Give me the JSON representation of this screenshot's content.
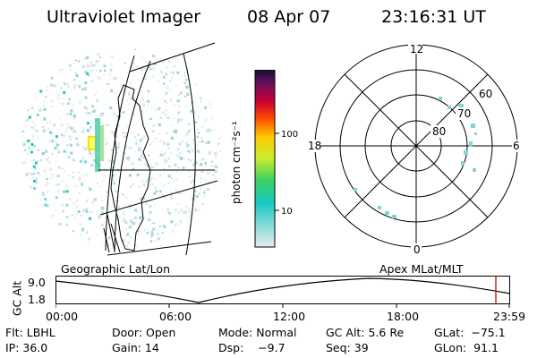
{
  "header": {
    "title": "Ultraviolet Imager",
    "date": "08 Apr 07",
    "time": "23:16:31 UT"
  },
  "colorbar": {
    "label_html": "photon cm⁻²s⁻¹",
    "tick_100": "100",
    "tick_10": "10"
  },
  "polar": {
    "mlt_top": "12",
    "mlt_bottom": "0",
    "mlt_left": "18",
    "mlt_right": "6",
    "lat_60": "60",
    "lat_70": "70",
    "lat_80": "80"
  },
  "timeline": {
    "left_label": "Geographic Lat/Lon",
    "right_label": "Apex MLat/MLT",
    "axis_title": "GC Alt",
    "y_max": "9.0",
    "y_min": "1.8",
    "ticks": [
      "00:00",
      "06:00",
      "12:00",
      "18:00",
      "23:59"
    ]
  },
  "status": {
    "flt": "Flt: LBHL",
    "door": "Door: Open",
    "mode": "Mode: Normal",
    "gcalt": "GC Alt: 5.6 Re",
    "glat": "GLat:  −75.1",
    "ip": "IP: 36.0",
    "gain": "Gain: 14",
    "dsp": "Dsp:    −9.7",
    "seq": "Seq: 39",
    "glon": "GLon:  91.1"
  },
  "colors": {
    "accent_red": "#cc0000",
    "speckle": "#7fd4d4",
    "hotspot": "#ffee00"
  }
}
